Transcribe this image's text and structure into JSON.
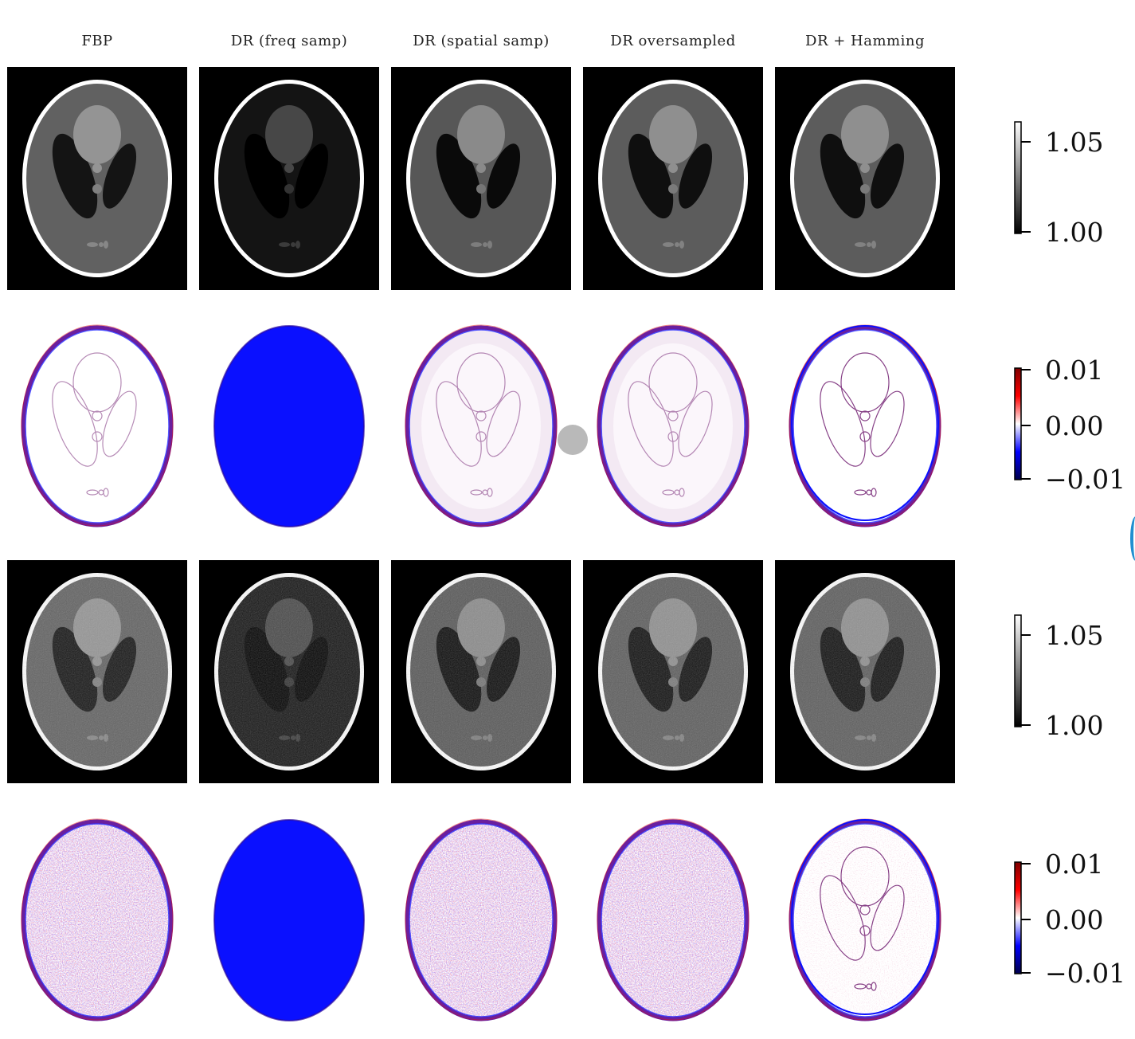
{
  "figure": {
    "columns": [
      "FBP",
      "DR (freq samp)",
      "DR (spatial samp)",
      "DR oversampled",
      "DR + Hamming"
    ],
    "rows": [
      {
        "kind": "recon",
        "noise": false
      },
      {
        "kind": "diff",
        "noise": false
      },
      {
        "kind": "recon",
        "noise": true
      },
      {
        "kind": "diff",
        "noise": true
      }
    ],
    "colorbars": [
      {
        "cmap": "gray",
        "ticks": [
          "1.05",
          "1.00"
        ]
      },
      {
        "cmap": "seismic",
        "ticks": [
          "0.01",
          "0.00",
          "−0.01"
        ]
      },
      {
        "cmap": "gray",
        "ticks": [
          "1.05",
          "1.00"
        ]
      },
      {
        "cmap": "seismic",
        "ticks": [
          "0.01",
          "0.00",
          "−0.01"
        ]
      }
    ],
    "intensity": {
      "FBP": 0.38,
      "DR (freq samp)": 0.08,
      "DR (spatial samp)": 0.34,
      "DR oversampled": 0.36,
      "DR + Hamming": 0.36
    },
    "colors": {
      "blue": "#0a10ff",
      "red": "#e01010",
      "purple": "#6a1f9e",
      "white": "#ffffff",
      "black": "#000000"
    }
  }
}
